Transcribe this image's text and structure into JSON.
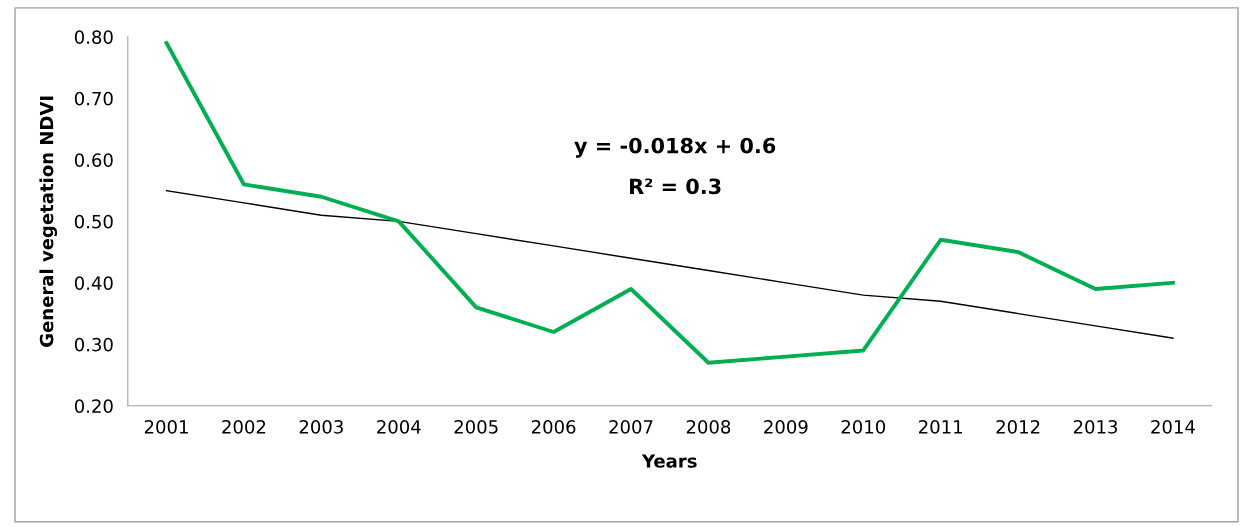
{
  "chart_data": {
    "type": "line",
    "xlabel": "Years",
    "ylabel": "General vegetation NDVI",
    "categories": [
      "2001",
      "2002",
      "2003",
      "2004",
      "2005",
      "2006",
      "2007",
      "2008",
      "2009",
      "2010",
      "2011",
      "2012",
      "2013",
      "2014"
    ],
    "series": [
      {
        "color": "#00b050",
        "values": [
          0.79,
          0.56,
          0.54,
          0.5,
          0.36,
          0.32,
          0.39,
          0.27,
          0.28,
          0.29,
          0.47,
          0.45,
          0.39,
          0.4
        ]
      },
      {
        "type": "line",
        "color": "#000000",
        "values": [
          0.55,
          0.53,
          0.51,
          0.5,
          0.48,
          0.46,
          0.44,
          0.42,
          0.4,
          0.38,
          0.37,
          0.35,
          0.33,
          0.31
        ]
      }
    ],
    "annotations": [
      "y = -0.018x + 0.6",
      "R² = 0.3"
    ],
    "ylim": [
      0.2,
      0.8
    ],
    "yticks": [
      {
        "value": 0.2,
        "label": "0.20"
      },
      {
        "value": 0.3,
        "label": "0.30"
      },
      {
        "value": 0.4,
        "label": "0.40"
      },
      {
        "value": 0.5,
        "label": "0.50"
      },
      {
        "value": 0.6,
        "label": "0.60"
      },
      {
        "value": 0.7,
        "label": "0.70"
      },
      {
        "value": 0.8,
        "label": "0.80"
      }
    ],
    "grid": false,
    "marker": "none",
    "line_style": "solid"
  }
}
